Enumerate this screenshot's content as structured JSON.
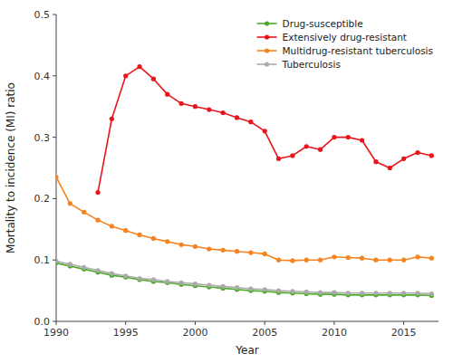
{
  "chart_data": {
    "type": "line",
    "xlabel": "Year",
    "ylabel": "Mortality to incidence (MI) ratio",
    "x": [
      1990,
      1991,
      1992,
      1993,
      1994,
      1995,
      1996,
      1997,
      1998,
      1999,
      2000,
      2001,
      2002,
      2003,
      2004,
      2005,
      2006,
      2007,
      2008,
      2009,
      2010,
      2011,
      2012,
      2013,
      2014,
      2015,
      2016,
      2017
    ],
    "series": [
      {
        "name": "Drug-susceptible",
        "color": "#4daa2a",
        "values": [
          0.095,
          0.09,
          0.085,
          0.08,
          0.075,
          0.072,
          0.068,
          0.065,
          0.063,
          0.06,
          0.058,
          0.056,
          0.054,
          0.052,
          0.05,
          0.049,
          0.047,
          0.046,
          0.045,
          0.044,
          0.044,
          0.043,
          0.043,
          0.043,
          0.043,
          0.043,
          0.043,
          0.042
        ]
      },
      {
        "name": "Extensively drug-resistant",
        "color": "#e8151b",
        "values": [
          null,
          null,
          null,
          0.21,
          0.33,
          0.4,
          0.415,
          0.395,
          0.37,
          0.355,
          0.35,
          0.345,
          0.34,
          0.332,
          0.325,
          0.31,
          0.265,
          0.27,
          0.285,
          0.28,
          0.3,
          0.3,
          0.295,
          0.26,
          0.25,
          0.265,
          0.275,
          0.27
        ]
      },
      {
        "name": "Multidrug-resistant tuberculosis",
        "color": "#f5831f",
        "values": [
          0.235,
          0.192,
          0.178,
          0.165,
          0.155,
          0.148,
          0.141,
          0.135,
          0.13,
          0.125,
          0.122,
          0.118,
          0.116,
          0.114,
          0.112,
          0.11,
          0.1,
          0.099,
          0.1,
          0.1,
          0.105,
          0.104,
          0.103,
          0.1,
          0.1,
          0.1,
          0.105,
          0.103
        ]
      },
      {
        "name": "Tuberculosis",
        "color": "#aaaaaa",
        "values": [
          0.098,
          0.093,
          0.088,
          0.083,
          0.078,
          0.074,
          0.07,
          0.068,
          0.065,
          0.063,
          0.061,
          0.059,
          0.057,
          0.055,
          0.053,
          0.052,
          0.05,
          0.049,
          0.048,
          0.047,
          0.047,
          0.046,
          0.046,
          0.046,
          0.046,
          0.046,
          0.046,
          0.045
        ]
      }
    ],
    "xlim": [
      1990,
      2017.5
    ],
    "ylim": [
      0.0,
      0.5
    ],
    "xticks": [
      1990,
      1995,
      2000,
      2005,
      2010,
      2015
    ],
    "yticks": [
      {
        "value": 0.0,
        "label": "0.0"
      },
      0.1,
      0.2,
      0.3,
      0.4,
      0.5
    ],
    "marker": "circle",
    "grid": false,
    "legend": "upper right"
  }
}
